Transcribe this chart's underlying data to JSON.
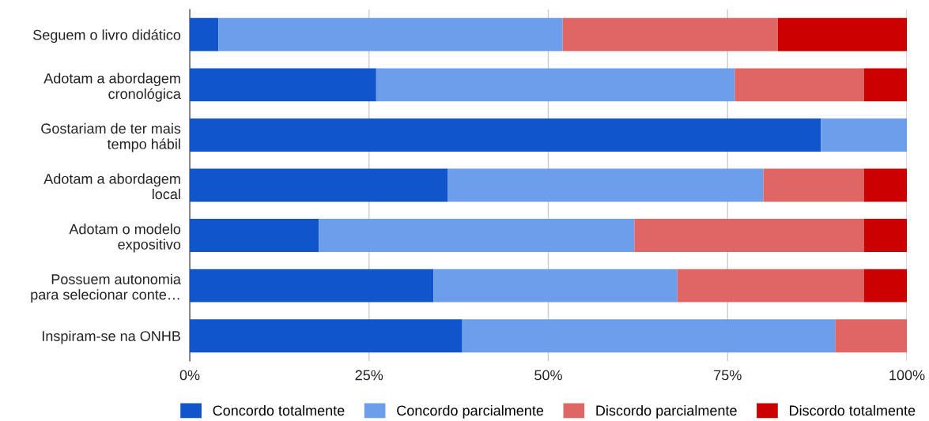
{
  "chart_data": {
    "type": "bar",
    "orientation": "horizontal",
    "stacked": true,
    "categories": [
      "Seguem o livro didático",
      "Adotam a abordagem\ncronológica",
      "Gostariam de ter mais\ntempo hábil",
      "Adotam a abordagem\nlocal",
      "Adotam o modelo\nexpositivo",
      "Possuem autonomia\npara selecionar conte…",
      "Inspiram-se na ONHB"
    ],
    "series": [
      {
        "name": "Concordo totalmente",
        "color": "#1155cc",
        "values": [
          4,
          26,
          88,
          36,
          18,
          34,
          38
        ]
      },
      {
        "name": "Concordo parcialmente",
        "color": "#6d9eeb",
        "values": [
          48,
          50,
          12,
          44,
          44,
          34,
          52
        ]
      },
      {
        "name": "Discordo parcialmente",
        "color": "#e06666",
        "values": [
          30,
          18,
          0,
          14,
          32,
          26,
          10
        ]
      },
      {
        "name": "Discordo totalmente",
        "color": "#cc0000",
        "values": [
          18,
          6,
          0,
          6,
          6,
          6,
          0
        ]
      }
    ],
    "xlim": [
      0,
      100
    ],
    "xticks": [
      {
        "value": 0,
        "label": "0%"
      },
      {
        "value": 25,
        "label": "25%"
      },
      {
        "value": 50,
        "label": "50%"
      },
      {
        "value": 75,
        "label": "75%"
      },
      {
        "value": 100,
        "label": "100%"
      }
    ],
    "grid": "x",
    "legend": "bottom"
  }
}
